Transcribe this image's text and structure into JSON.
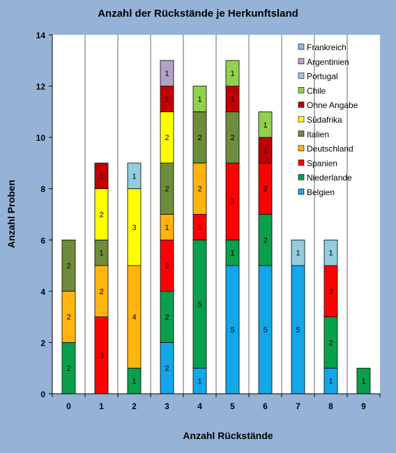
{
  "chart_data": {
    "type": "bar",
    "stacked": true,
    "title": "Anzahl der Rückstände je Herkunftsland",
    "xlabel": "Anzahl Rückstände",
    "ylabel": "Anzahl Proben",
    "ylim": [
      0,
      14
    ],
    "yticks": [
      "0",
      "2",
      "4",
      "6",
      "8",
      "10",
      "12",
      "14"
    ],
    "categories": [
      "0",
      "1",
      "2",
      "3",
      "4",
      "5",
      "6",
      "7",
      "8",
      "9"
    ],
    "grid": "vertical separators",
    "legend_position": "top-right",
    "background": "#95b3d7",
    "plot_background": "#ffffff",
    "series": [
      {
        "name": "Belgien",
        "color": "#11a7e8",
        "values": [
          0,
          0,
          0,
          2,
          1,
          5,
          5,
          5,
          1,
          0
        ]
      },
      {
        "name": "Niederlande",
        "color": "#0aa04b",
        "values": [
          2,
          0,
          1,
          2,
          5,
          1,
          2,
          0,
          2,
          1
        ]
      },
      {
        "name": "Spanien",
        "color": "#ff0000",
        "values": [
          0,
          3,
          0,
          2,
          1,
          3,
          2,
          0,
          2,
          0
        ]
      },
      {
        "name": "Deutschland",
        "color": "#ffb50d",
        "values": [
          2,
          2,
          4,
          1,
          2,
          0,
          0,
          0,
          0,
          0
        ]
      },
      {
        "name": "Italien",
        "color": "#6e8c3c",
        "values": [
          2,
          1,
          0,
          2,
          2,
          2,
          0,
          0,
          0,
          0
        ]
      },
      {
        "name": "Südafrika",
        "color": "#ffff00",
        "values": [
          0,
          2,
          3,
          2,
          0,
          0,
          0,
          0,
          0,
          0
        ]
      },
      {
        "name": "Ohne Angabe",
        "color": "#c00000",
        "values": [
          0,
          1,
          0,
          1,
          0,
          1,
          1,
          0,
          0,
          0
        ]
      },
      {
        "name": "Chile",
        "color": "#92d050",
        "values": [
          0,
          0,
          0,
          0,
          1,
          1,
          1,
          0,
          0,
          0
        ]
      },
      {
        "name": "Portugal",
        "color": "#93cddd",
        "values": [
          0,
          0,
          1,
          0,
          0,
          0,
          0,
          1,
          1,
          0
        ]
      },
      {
        "name": "Argentinien",
        "color": "#b3a2c7",
        "values": [
          0,
          0,
          0,
          1,
          0,
          0,
          0,
          0,
          0,
          0
        ]
      },
      {
        "name": "Frankreich",
        "color": "#95b3d7",
        "values": [
          0,
          0,
          0,
          0,
          0,
          0,
          0,
          0,
          0,
          0
        ]
      }
    ],
    "legend_order": [
      "Frankreich",
      "Argentinien",
      "Portugal",
      "Chile",
      "Ohne Angabe",
      "Südafrika",
      "Italien",
      "Deutschland",
      "Spanien",
      "Niederlande",
      "Belgien"
    ]
  }
}
